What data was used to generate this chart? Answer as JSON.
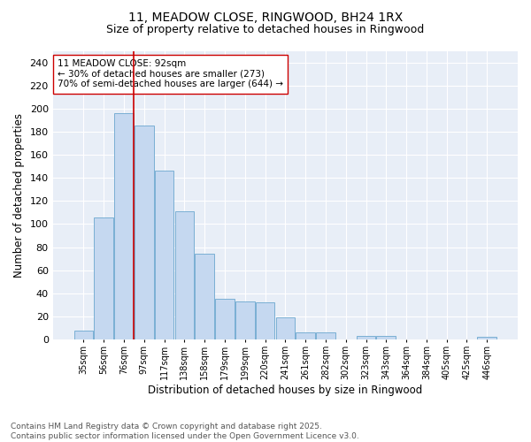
{
  "title1": "11, MEADOW CLOSE, RINGWOOD, BH24 1RX",
  "title2": "Size of property relative to detached houses in Ringwood",
  "xlabel": "Distribution of detached houses by size in Ringwood",
  "ylabel": "Number of detached properties",
  "footnote": "Contains HM Land Registry data © Crown copyright and database right 2025.\nContains public sector information licensed under the Open Government Licence v3.0.",
  "bin_labels": [
    "35sqm",
    "56sqm",
    "76sqm",
    "97sqm",
    "117sqm",
    "138sqm",
    "158sqm",
    "179sqm",
    "199sqm",
    "220sqm",
    "241sqm",
    "261sqm",
    "282sqm",
    "302sqm",
    "323sqm",
    "343sqm",
    "364sqm",
    "384sqm",
    "405sqm",
    "425sqm",
    "446sqm"
  ],
  "bar_values": [
    8,
    106,
    196,
    185,
    146,
    111,
    74,
    35,
    33,
    32,
    19,
    6,
    6,
    0,
    3,
    3,
    0,
    0,
    0,
    0,
    2
  ],
  "bar_color": "#c5d8f0",
  "bar_edgecolor": "#7aafd4",
  "vline_position": 2.5,
  "vline_color": "#cc0000",
  "annotation_box_text": "11 MEADOW CLOSE: 92sqm\n← 30% of detached houses are smaller (273)\n70% of semi-detached houses are larger (644) →",
  "annotation_fontsize": 7.5,
  "title1_fontsize": 10,
  "title2_fontsize": 9,
  "xlabel_fontsize": 8.5,
  "ylabel_fontsize": 8.5,
  "yticks": [
    0,
    20,
    40,
    60,
    80,
    100,
    120,
    140,
    160,
    180,
    200,
    220,
    240
  ],
  "ylim": [
    0,
    250
  ],
  "plot_background_color": "#e8eef7",
  "footnote_fontsize": 6.5,
  "footnote_color": "#555555"
}
